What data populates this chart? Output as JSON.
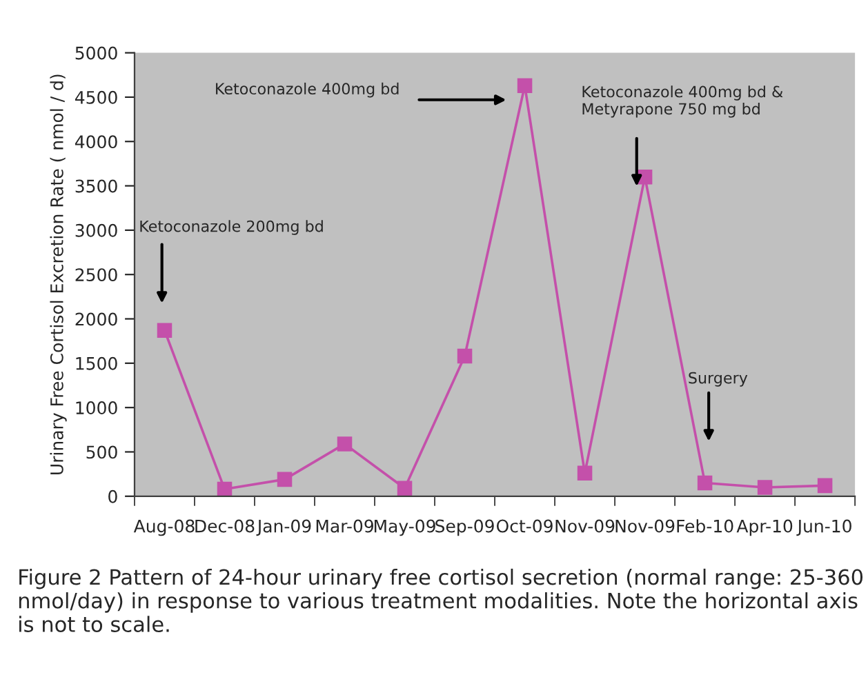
{
  "chart_data": {
    "type": "line",
    "ylabel": "Urinary Free Cortisol Excretion Rate ( nmol / d)",
    "categories": [
      "Aug-08",
      "Dec-08",
      "Jan-09",
      "Mar-09",
      "May-09",
      "Sep-09",
      "Oct-09",
      "Nov-09",
      "Nov-09",
      "Feb-10",
      "Apr-10",
      "Jun-10"
    ],
    "series": [
      {
        "color": "#c450aa",
        "values": [
          1870,
          80,
          190,
          590,
          90,
          1580,
          4630,
          260,
          3600,
          150,
          100,
          120
        ]
      }
    ],
    "ylim": [
      0,
      5000
    ],
    "yticks": [
      0,
      500,
      1000,
      1500,
      2000,
      2500,
      3000,
      3500,
      4000,
      4500,
      5000
    ],
    "marker": "square",
    "line_style": "solid",
    "grid": false,
    "legend": false,
    "annotations": [
      "Ketoconazole 200mg bd",
      "Ketoconazole 400mg bd",
      "Ketoconazole 400mg bd &\nMetyrapone 750 mg bd",
      "Surgery",
      "Figure 2 Pattern of 24-hour urinary free cortisol secretion (normal range: 25-360 nmol/day) in response to various treatment modalities. Note the horizontal axis is not to scale."
    ]
  }
}
